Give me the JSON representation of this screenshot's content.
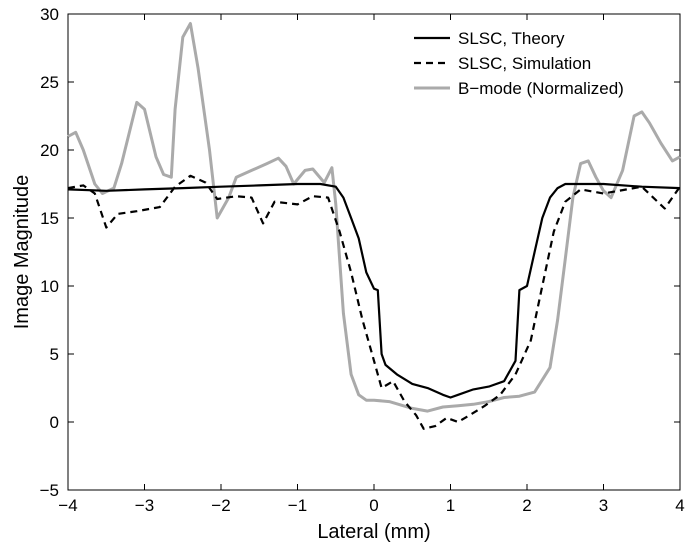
{
  "chart_data": {
    "type": "line",
    "title": "",
    "xlabel": "Lateral (mm)",
    "ylabel": "Image Magnitude",
    "xlim": [
      -4,
      4
    ],
    "ylim": [
      -5,
      30
    ],
    "xticks": [
      -4,
      -3,
      -2,
      -1,
      0,
      1,
      2,
      3,
      4
    ],
    "yticks": [
      -5,
      0,
      5,
      10,
      15,
      20,
      25,
      30
    ],
    "grid": false,
    "legend_position": "top-right",
    "series": [
      {
        "name": "SLSC, Theory",
        "color": "#000000",
        "dash": "solid",
        "points": [
          [
            -4,
            17.1
          ],
          [
            -3.5,
            17.0
          ],
          [
            -3,
            17.1
          ],
          [
            -2.5,
            17.2
          ],
          [
            -2,
            17.3
          ],
          [
            -1.5,
            17.4
          ],
          [
            -1,
            17.5
          ],
          [
            -0.7,
            17.5
          ],
          [
            -0.5,
            17.3
          ],
          [
            -0.4,
            16.5
          ],
          [
            -0.3,
            15.0
          ],
          [
            -0.2,
            13.5
          ],
          [
            -0.1,
            11.0
          ],
          [
            0,
            9.8
          ],
          [
            0.05,
            9.7
          ],
          [
            0.1,
            5.0
          ],
          [
            0.15,
            4.2
          ],
          [
            0.3,
            3.5
          ],
          [
            0.5,
            2.8
          ],
          [
            0.7,
            2.5
          ],
          [
            0.9,
            2.0
          ],
          [
            1.0,
            1.8
          ],
          [
            1.1,
            2.0
          ],
          [
            1.3,
            2.4
          ],
          [
            1.5,
            2.6
          ],
          [
            1.7,
            3.0
          ],
          [
            1.85,
            4.5
          ],
          [
            1.9,
            9.7
          ],
          [
            2.0,
            10.0
          ],
          [
            2.1,
            12.5
          ],
          [
            2.2,
            15.0
          ],
          [
            2.3,
            16.5
          ],
          [
            2.4,
            17.2
          ],
          [
            2.5,
            17.5
          ],
          [
            3,
            17.5
          ],
          [
            3.5,
            17.3
          ],
          [
            4,
            17.2
          ]
        ]
      },
      {
        "name": "SLSC, Simulation",
        "color": "#000000",
        "dash": "dashed",
        "points": [
          [
            -4,
            17.2
          ],
          [
            -3.8,
            17.4
          ],
          [
            -3.65,
            16.8
          ],
          [
            -3.5,
            14.3
          ],
          [
            -3.35,
            15.3
          ],
          [
            -3.1,
            15.5
          ],
          [
            -2.8,
            15.8
          ],
          [
            -2.6,
            17.3
          ],
          [
            -2.4,
            18.1
          ],
          [
            -2.2,
            17.6
          ],
          [
            -2.05,
            16.4
          ],
          [
            -1.8,
            16.6
          ],
          [
            -1.6,
            16.5
          ],
          [
            -1.45,
            14.6
          ],
          [
            -1.3,
            16.2
          ],
          [
            -1.0,
            16.0
          ],
          [
            -0.8,
            16.6
          ],
          [
            -0.6,
            16.5
          ],
          [
            -0.45,
            14.0
          ],
          [
            -0.3,
            11.0
          ],
          [
            -0.15,
            7.5
          ],
          [
            0,
            4.5
          ],
          [
            0.1,
            2.5
          ],
          [
            0.25,
            3.0
          ],
          [
            0.4,
            1.5
          ],
          [
            0.55,
            0.5
          ],
          [
            0.65,
            -0.5
          ],
          [
            0.8,
            -0.3
          ],
          [
            0.95,
            0.3
          ],
          [
            1.1,
            0.0
          ],
          [
            1.25,
            0.5
          ],
          [
            1.45,
            1.2
          ],
          [
            1.65,
            2.0
          ],
          [
            1.85,
            3.5
          ],
          [
            2.05,
            6.0
          ],
          [
            2.2,
            10.0
          ],
          [
            2.35,
            14.0
          ],
          [
            2.5,
            16.2
          ],
          [
            2.7,
            17.1
          ],
          [
            3.0,
            16.8
          ],
          [
            3.2,
            17.0
          ],
          [
            3.5,
            17.3
          ],
          [
            3.8,
            15.7
          ],
          [
            4.0,
            17.3
          ]
        ]
      },
      {
        "name": "B−mode (Normalized)",
        "color": "#aaaaaa",
        "dash": "solid",
        "points": [
          [
            -4,
            21.0
          ],
          [
            -3.9,
            21.3
          ],
          [
            -3.8,
            20.0
          ],
          [
            -3.65,
            17.5
          ],
          [
            -3.55,
            16.8
          ],
          [
            -3.4,
            17.2
          ],
          [
            -3.3,
            19.0
          ],
          [
            -3.1,
            23.5
          ],
          [
            -3.0,
            23.0
          ],
          [
            -2.85,
            19.5
          ],
          [
            -2.75,
            18.2
          ],
          [
            -2.65,
            18.0
          ],
          [
            -2.6,
            23.0
          ],
          [
            -2.5,
            28.3
          ],
          [
            -2.4,
            29.3
          ],
          [
            -2.3,
            26.0
          ],
          [
            -2.15,
            20.0
          ],
          [
            -2.05,
            15.0
          ],
          [
            -1.9,
            16.5
          ],
          [
            -1.8,
            18.0
          ],
          [
            -1.6,
            18.5
          ],
          [
            -1.4,
            19.0
          ],
          [
            -1.25,
            19.4
          ],
          [
            -1.15,
            18.8
          ],
          [
            -1.05,
            17.5
          ],
          [
            -0.9,
            18.5
          ],
          [
            -0.8,
            18.6
          ],
          [
            -0.65,
            17.6
          ],
          [
            -0.55,
            18.7
          ],
          [
            -0.5,
            16.0
          ],
          [
            -0.4,
            8.0
          ],
          [
            -0.3,
            3.5
          ],
          [
            -0.2,
            2.0
          ],
          [
            -0.1,
            1.6
          ],
          [
            0,
            1.6
          ],
          [
            0.2,
            1.5
          ],
          [
            0.5,
            1.0
          ],
          [
            0.7,
            0.8
          ],
          [
            0.9,
            1.1
          ],
          [
            1.1,
            1.2
          ],
          [
            1.3,
            1.3
          ],
          [
            1.5,
            1.5
          ],
          [
            1.7,
            1.8
          ],
          [
            1.9,
            1.9
          ],
          [
            2.1,
            2.2
          ],
          [
            2.3,
            4.0
          ],
          [
            2.4,
            7.5
          ],
          [
            2.5,
            12.0
          ],
          [
            2.6,
            16.5
          ],
          [
            2.7,
            19.0
          ],
          [
            2.8,
            19.2
          ],
          [
            2.9,
            18.0
          ],
          [
            3.0,
            17.0
          ],
          [
            3.1,
            16.5
          ],
          [
            3.25,
            18.5
          ],
          [
            3.4,
            22.5
          ],
          [
            3.5,
            22.8
          ],
          [
            3.6,
            22.0
          ],
          [
            3.75,
            20.5
          ],
          [
            3.9,
            19.2
          ],
          [
            4.0,
            19.5
          ]
        ]
      }
    ]
  }
}
